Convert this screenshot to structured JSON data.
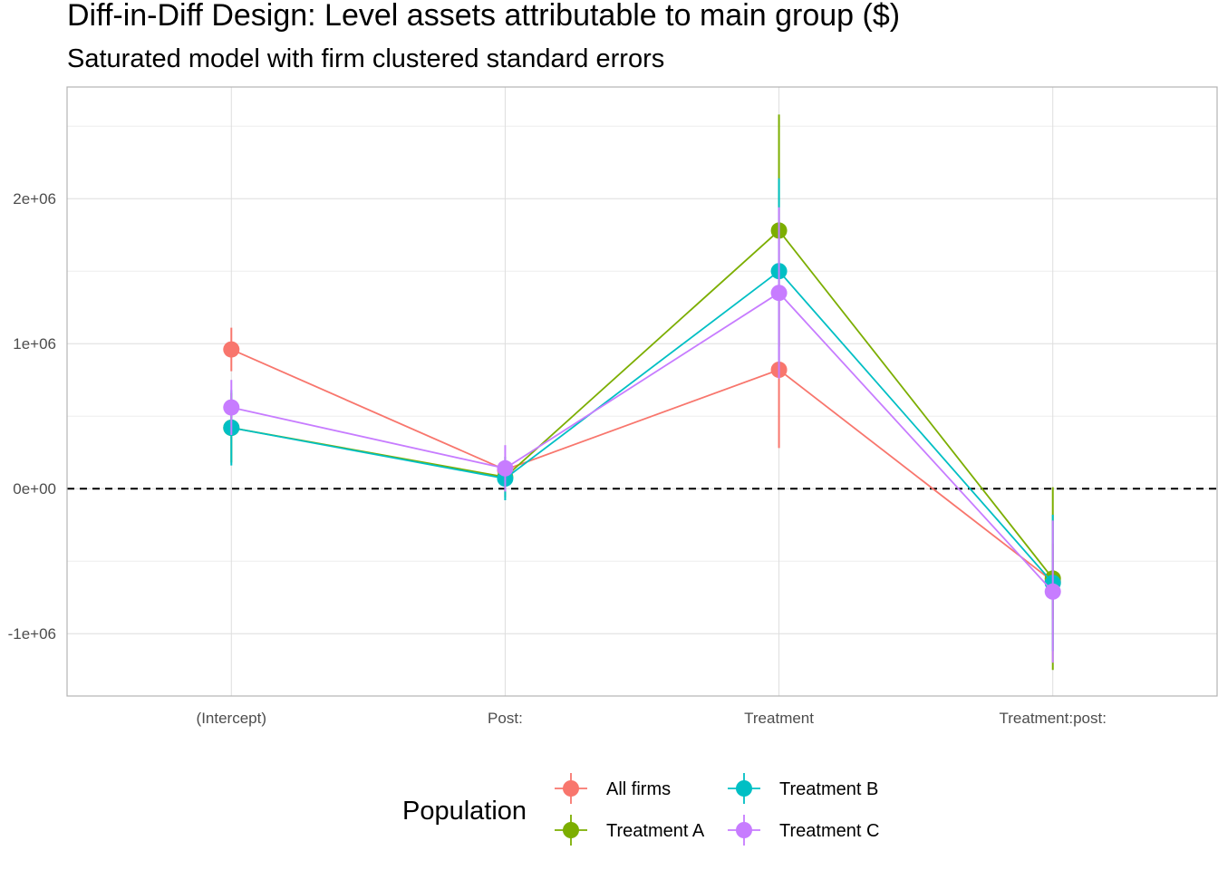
{
  "chart_data": {
    "type": "line",
    "title": "Diff-in-Diff Design: Level assets attributable to main group  ($)",
    "subtitle": "Saturated model with firm clustered standard errors",
    "xlabel": "",
    "ylabel": "",
    "categories": [
      "(Intercept)",
      "Post:",
      "Treatment",
      "Treatment:post:"
    ],
    "y_ticks": [
      {
        "value": -1000000,
        "label": "-1e+06"
      },
      {
        "value": 0,
        "label": "0e+00"
      },
      {
        "value": 1000000,
        "label": "1e+06"
      },
      {
        "value": 2000000,
        "label": "2e+06"
      }
    ],
    "ylim": [
      -1430000,
      2770000
    ],
    "grid": true,
    "reference_line": {
      "value": 0,
      "style": "dashed"
    },
    "legend": {
      "title": "Population",
      "position": "bottom"
    },
    "series": [
      {
        "name": "All firms",
        "color": "#F8766D",
        "values": [
          960000,
          130000,
          820000,
          -640000
        ],
        "lower": [
          810000,
          100000,
          280000,
          -900000
        ],
        "upper": [
          1110000,
          160000,
          1360000,
          -380000
        ]
      },
      {
        "name": "Treatment A",
        "color": "#7CAE00",
        "values": [
          420000,
          80000,
          1780000,
          -620000
        ],
        "lower": [
          180000,
          -60000,
          980000,
          -1250000
        ],
        "upper": [
          660000,
          220000,
          2580000,
          10000
        ]
      },
      {
        "name": "Treatment B",
        "color": "#00BFC4",
        "values": [
          420000,
          70000,
          1500000,
          -650000
        ],
        "lower": [
          160000,
          -80000,
          860000,
          -1120000
        ],
        "upper": [
          680000,
          220000,
          2140000,
          -180000
        ]
      },
      {
        "name": "Treatment C",
        "color": "#C77CFF",
        "values": [
          560000,
          140000,
          1350000,
          -710000
        ],
        "lower": [
          370000,
          -20000,
          760000,
          -1200000
        ],
        "upper": [
          750000,
          300000,
          1940000,
          -220000
        ]
      }
    ]
  }
}
